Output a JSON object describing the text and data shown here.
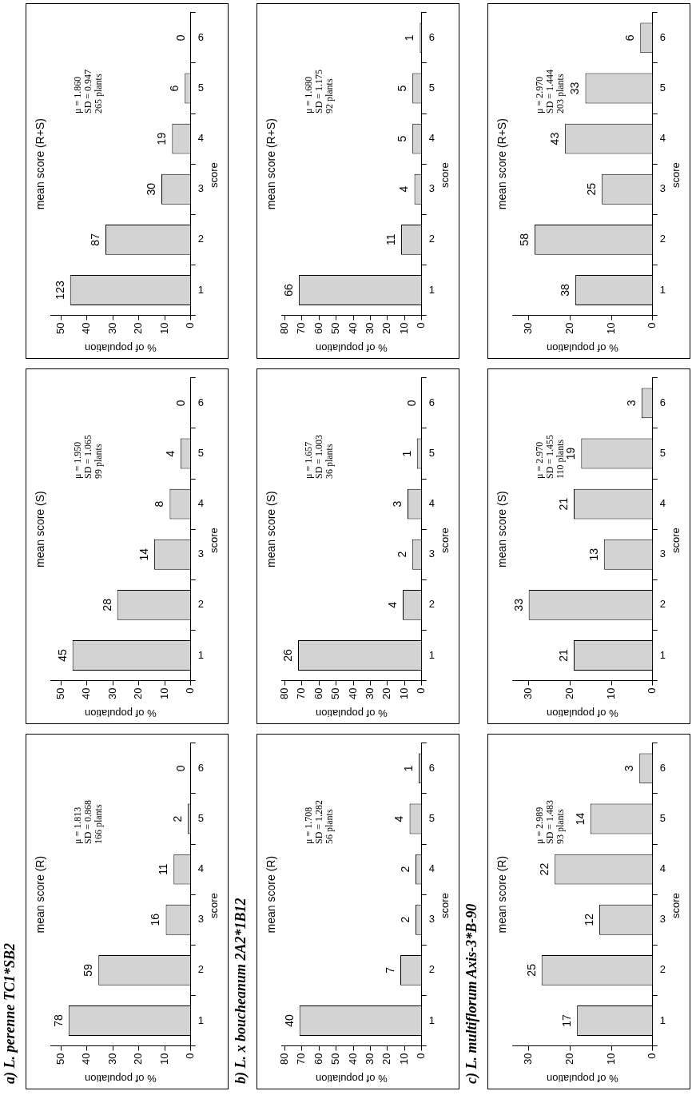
{
  "chart_data": [
    {
      "type": "bar",
      "orientation": "horizontal",
      "subtitle": "a)  L. perenne TC1*SB2",
      "title": "mean score (R)",
      "ylabel": "score",
      "xlabel": "% of population",
      "categories": [
        "6",
        "5",
        "4",
        "3",
        "2",
        "1"
      ],
      "values": [
        0,
        1.2,
        6.6,
        9.6,
        35.5,
        47.0
      ],
      "color": "#d3d3d3",
      "xlim": [
        54,
        0
      ],
      "xticks": [
        50,
        40,
        30,
        20,
        10,
        0
      ],
      "grid": false,
      "annotations": [
        "μ = 1.813",
        "SD = 0.868",
        "166 plants",
        {
          "text": "0",
          "x": 0,
          "y": "6"
        },
        {
          "text": "2",
          "x": 1.2,
          "y": "5"
        },
        {
          "text": "11",
          "x": 6.6,
          "y": "4"
        },
        {
          "text": "16",
          "x": 9.6,
          "y": "3"
        },
        {
          "text": "59",
          "x": 35.5,
          "y": "2"
        },
        {
          "text": "78",
          "x": 47.0,
          "y": "1"
        }
      ]
    },
    {
      "type": "bar",
      "orientation": "horizontal",
      "title": "mean score (S)",
      "ylabel": "score",
      "xlabel": "% of population",
      "categories": [
        "6",
        "5",
        "4",
        "3",
        "2",
        "1"
      ],
      "values": [
        0,
        4.0,
        8.1,
        14.1,
        28.3,
        45.5
      ],
      "color": "#d3d3d3",
      "xlim": [
        54,
        0
      ],
      "xticks": [
        50,
        40,
        30,
        20,
        10,
        0
      ],
      "grid": false,
      "annotations": [
        "μ = 1.950",
        "SD = 1.065",
        "99 plants",
        {
          "text": "0",
          "x": 0,
          "y": "6"
        },
        {
          "text": "4",
          "x": 4.0,
          "y": "5"
        },
        {
          "text": "8",
          "x": 8.1,
          "y": "4"
        },
        {
          "text": "14",
          "x": 14.1,
          "y": "3"
        },
        {
          "text": "28",
          "x": 28.3,
          "y": "2"
        },
        {
          "text": "45",
          "x": 45.5,
          "y": "1"
        }
      ]
    },
    {
      "type": "bar",
      "orientation": "horizontal",
      "title": "mean score (R+S)",
      "ylabel": "score",
      "xlabel": "% of population",
      "categories": [
        "6",
        "5",
        "4",
        "3",
        "2",
        "1"
      ],
      "values": [
        0,
        2.3,
        7.2,
        11.3,
        32.8,
        46.4
      ],
      "color": "#d3d3d3",
      "xlim": [
        54,
        0
      ],
      "xticks": [
        50,
        40,
        30,
        20,
        10,
        0
      ],
      "grid": false,
      "annotations": [
        "μ = 1.860",
        "SD = 0.947",
        "265 plants",
        {
          "text": "0",
          "x": 0,
          "y": "6"
        },
        {
          "text": "6",
          "x": 2.3,
          "y": "5"
        },
        {
          "text": "19",
          "x": 7.2,
          "y": "4"
        },
        {
          "text": "30",
          "x": 11.3,
          "y": "3"
        },
        {
          "text": "87",
          "x": 32.8,
          "y": "2"
        },
        {
          "text": "123",
          "x": 46.4,
          "y": "1"
        }
      ]
    },
    {
      "type": "bar",
      "orientation": "horizontal",
      "subtitle": "b)  L. x boucheanum 2A2*1B12",
      "title": "mean score (R)",
      "ylabel": "score",
      "xlabel": "% of population",
      "categories": [
        "6",
        "5",
        "4",
        "3",
        "2",
        "1"
      ],
      "values": [
        1.8,
        7.1,
        3.6,
        3.6,
        12.5,
        71.4
      ],
      "color": "#d3d3d3",
      "xlim": [
        82,
        0
      ],
      "xticks": [
        80,
        70,
        60,
        50,
        40,
        30,
        20,
        10,
        0
      ],
      "grid": false,
      "annotations": [
        "μ = 1.708",
        "SD = 1.282",
        "56 plants",
        {
          "text": "1",
          "x": 1.8,
          "y": "6"
        },
        {
          "text": "4",
          "x": 7.1,
          "y": "5"
        },
        {
          "text": "2",
          "x": 3.6,
          "y": "4"
        },
        {
          "text": "2",
          "x": 3.6,
          "y": "3"
        },
        {
          "text": "7",
          "x": 12.5,
          "y": "2"
        },
        {
          "text": "40",
          "x": 71.4,
          "y": "1"
        }
      ]
    },
    {
      "type": "bar",
      "orientation": "horizontal",
      "title": "mean score (S)",
      "ylabel": "score",
      "xlabel": "% of population",
      "categories": [
        "6",
        "5",
        "4",
        "3",
        "2",
        "1"
      ],
      "values": [
        0,
        2.8,
        8.3,
        5.6,
        11.1,
        72.2
      ],
      "color": "#d3d3d3",
      "xlim": [
        82,
        0
      ],
      "xticks": [
        80,
        70,
        60,
        50,
        40,
        30,
        20,
        10,
        0
      ],
      "grid": false,
      "annotations": [
        "μ = 1.657",
        "SD = 1.003",
        "36 plants",
        {
          "text": "0",
          "x": 0,
          "y": "6"
        },
        {
          "text": "1",
          "x": 2.8,
          "y": "5"
        },
        {
          "text": "3",
          "x": 8.3,
          "y": "4"
        },
        {
          "text": "2",
          "x": 5.6,
          "y": "3"
        },
        {
          "text": "4",
          "x": 11.1,
          "y": "2"
        },
        {
          "text": "26",
          "x": 72.2,
          "y": "1"
        }
      ]
    },
    {
      "type": "bar",
      "orientation": "horizontal",
      "title": "mean score (R+S)",
      "ylabel": "score",
      "xlabel": "% of population",
      "categories": [
        "6",
        "5",
        "4",
        "3",
        "2",
        "1"
      ],
      "values": [
        1.1,
        5.4,
        5.4,
        4.3,
        12.0,
        71.7
      ],
      "color": "#d3d3d3",
      "xlim": [
        82,
        0
      ],
      "xticks": [
        80,
        70,
        60,
        50,
        40,
        30,
        20,
        10,
        0
      ],
      "grid": false,
      "annotations": [
        "μ = 1.680",
        "SD = 1.175",
        "92 plants",
        {
          "text": "1",
          "x": 1.1,
          "y": "6"
        },
        {
          "text": "5",
          "x": 5.4,
          "y": "5"
        },
        {
          "text": "5",
          "x": 5.4,
          "y": "4"
        },
        {
          "text": "4",
          "x": 4.3,
          "y": "3"
        },
        {
          "text": "11",
          "x": 12.0,
          "y": "2"
        },
        {
          "text": "66",
          "x": 71.7,
          "y": "1"
        }
      ]
    },
    {
      "type": "bar",
      "orientation": "horizontal",
      "subtitle": "c)  L. multiflorum Axis-3*B-90",
      "title": "mean score (R)",
      "ylabel": "score",
      "xlabel": "% of population",
      "categories": [
        "6",
        "5",
        "4",
        "3",
        "2",
        "1"
      ],
      "values": [
        3.2,
        15.1,
        23.7,
        12.9,
        26.9,
        18.3
      ],
      "color": "#d3d3d3",
      "xlim": [
        34,
        0
      ],
      "xticks": [
        30,
        20,
        10,
        0
      ],
      "grid": false,
      "annotations": [
        "μ = 2.989",
        "SD = 1.483",
        "93 plants",
        {
          "text": "3",
          "x": 3.2,
          "y": "6"
        },
        {
          "text": "14",
          "x": 15.1,
          "y": "5"
        },
        {
          "text": "22",
          "x": 23.7,
          "y": "4"
        },
        {
          "text": "12",
          "x": 12.9,
          "y": "3"
        },
        {
          "text": "25",
          "x": 26.9,
          "y": "2"
        },
        {
          "text": "17",
          "x": 18.3,
          "y": "1"
        }
      ]
    },
    {
      "type": "bar",
      "orientation": "horizontal",
      "title": "mean score (S)",
      "ylabel": "score",
      "xlabel": "% of population",
      "categories": [
        "6",
        "5",
        "4",
        "3",
        "2",
        "1"
      ],
      "values": [
        2.7,
        17.3,
        19.1,
        11.8,
        30.0,
        19.1
      ],
      "color": "#d3d3d3",
      "xlim": [
        34,
        0
      ],
      "xticks": [
        30,
        20,
        10,
        0
      ],
      "grid": false,
      "annotations": [
        "μ = 2.970",
        "SD = 1.455",
        "110 plants",
        {
          "text": "3",
          "x": 2.7,
          "y": "6"
        },
        {
          "text": "19",
          "x": 17.3,
          "y": "5"
        },
        {
          "text": "21",
          "x": 19.1,
          "y": "4"
        },
        {
          "text": "13",
          "x": 11.8,
          "y": "3"
        },
        {
          "text": "33",
          "x": 30.0,
          "y": "2"
        },
        {
          "text": "21",
          "x": 19.1,
          "y": "1"
        }
      ]
    },
    {
      "type": "bar",
      "orientation": "horizontal",
      "title": "mean score (R+S)",
      "ylabel": "score",
      "xlabel": "% of population",
      "categories": [
        "6",
        "5",
        "4",
        "3",
        "2",
        "1"
      ],
      "values": [
        3.0,
        16.3,
        21.2,
        12.3,
        28.6,
        18.7
      ],
      "color": "#d3d3d3",
      "xlim": [
        34,
        0
      ],
      "xticks": [
        30,
        20,
        10,
        0
      ],
      "grid": false,
      "annotations": [
        "μ = 2.970",
        "SD = 1.444",
        "203 plants",
        {
          "text": "6",
          "x": 3.0,
          "y": "6"
        },
        {
          "text": "33",
          "x": 16.3,
          "y": "5"
        },
        {
          "text": "43",
          "x": 21.2,
          "y": "4"
        },
        {
          "text": "25",
          "x": 12.3,
          "y": "3"
        },
        {
          "text": "58",
          "x": 28.6,
          "y": "2"
        },
        {
          "text": "38",
          "x": 18.7,
          "y": "1"
        }
      ]
    }
  ]
}
